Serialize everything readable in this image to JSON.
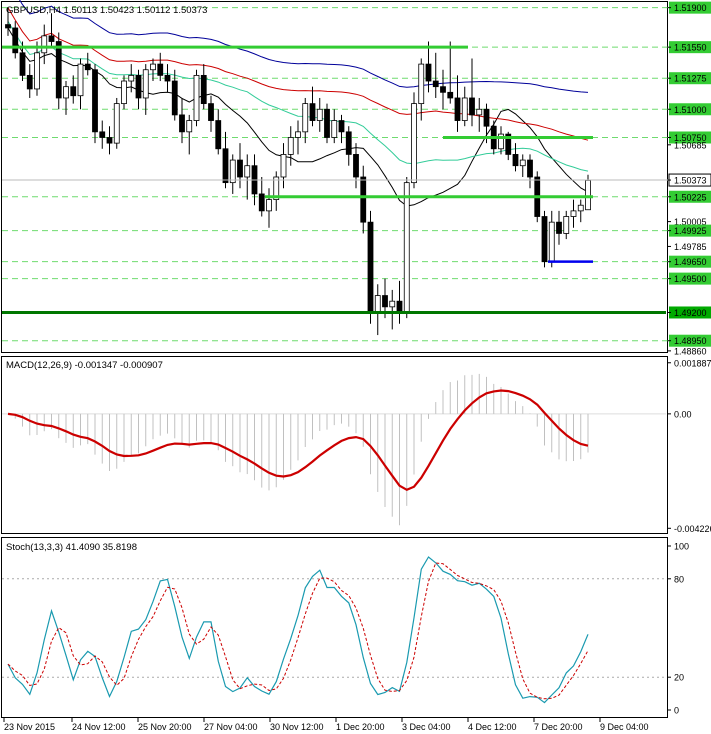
{
  "chart_data": [
    {
      "type": "candlestick",
      "title": "GBPUSD,H4 1.50113 1.50423 1.50112 1.50373",
      "ylim": [
        1.4885,
        1.5195
      ],
      "y_ticks": [
        "1.51900",
        "1.51550",
        "1.51275",
        "1.51000",
        "1.50750",
        "1.50685",
        "1.50373",
        "1.50225",
        "1.50005",
        "1.49925",
        "1.49785",
        "1.49650",
        "1.49500",
        "1.49200",
        "1.48950",
        "1.48860"
      ],
      "highlighted_labels": [
        "1.51900",
        "1.51550",
        "1.51275",
        "1.51000",
        "1.50750",
        "1.50225",
        "1.49925",
        "1.49650",
        "1.49500",
        "1.48950"
      ],
      "current_price_label": "1.50373",
      "key_level_label": "1.49200",
      "horizontal_levels": [
        {
          "value": 1.5155,
          "color": "#33cc33"
        },
        {
          "value": 1.5075,
          "color": "#33cc33"
        },
        {
          "value": 1.50225,
          "color": "#33cc33"
        },
        {
          "value": 1.4965,
          "color": "#0000ee"
        },
        {
          "value": 1.492,
          "color": "#007700"
        }
      ],
      "ohlc": [
        [
          1.5175,
          1.519,
          1.5165,
          1.5172
        ],
        [
          1.5172,
          1.5178,
          1.5145,
          1.515
        ],
        [
          1.515,
          1.516,
          1.5125,
          1.513
        ],
        [
          1.513,
          1.514,
          1.511,
          1.5118
        ],
        [
          1.5118,
          1.516,
          1.5112,
          1.515
        ],
        [
          1.515,
          1.5175,
          1.514,
          1.5165
        ],
        [
          1.5165,
          1.5185,
          1.5155,
          1.516
        ],
        [
          1.516,
          1.5168,
          1.51,
          1.511
        ],
        [
          1.511,
          1.5125,
          1.5095,
          1.512
        ],
        [
          1.512,
          1.513,
          1.5105,
          1.5112
        ],
        [
          1.5112,
          1.5145,
          1.51,
          1.514
        ],
        [
          1.514,
          1.515,
          1.513,
          1.5135
        ],
        [
          1.5135,
          1.514,
          1.507,
          1.508
        ],
        [
          1.508,
          1.509,
          1.5065,
          1.5075
        ],
        [
          1.5075,
          1.5085,
          1.506,
          1.507
        ],
        [
          1.507,
          1.511,
          1.5065,
          1.5105
        ],
        [
          1.5105,
          1.513,
          1.51,
          1.5125
        ],
        [
          1.5125,
          1.514,
          1.5115,
          1.513
        ],
        [
          1.513,
          1.5135,
          1.51,
          1.511
        ],
        [
          1.511,
          1.514,
          1.5095,
          1.5135
        ],
        [
          1.5135,
          1.5145,
          1.5125,
          1.514
        ],
        [
          1.514,
          1.515,
          1.5125,
          1.513
        ],
        [
          1.513,
          1.514,
          1.5115,
          1.5125
        ],
        [
          1.5125,
          1.5135,
          1.509,
          1.5095
        ],
        [
          1.5095,
          1.511,
          1.507,
          1.508
        ],
        [
          1.508,
          1.5095,
          1.506,
          1.509
        ],
        [
          1.509,
          1.5135,
          1.5085,
          1.513
        ],
        [
          1.513,
          1.514,
          1.51,
          1.5105
        ],
        [
          1.5105,
          1.5112,
          1.508,
          1.509
        ],
        [
          1.509,
          1.51,
          1.506,
          1.5065
        ],
        [
          1.5065,
          1.508,
          1.503,
          1.5035
        ],
        [
          1.5035,
          1.506,
          1.5025,
          1.5055
        ],
        [
          1.5055,
          1.507,
          1.503,
          1.504
        ],
        [
          1.504,
          1.506,
          1.502,
          1.505
        ],
        [
          1.505,
          1.506,
          1.5015,
          1.5025
        ],
        [
          1.5025,
          1.504,
          1.5005,
          1.501
        ],
        [
          1.501,
          1.503,
          1.4995,
          1.502
        ],
        [
          1.502,
          1.5045,
          1.501,
          1.504
        ],
        [
          1.504,
          1.507,
          1.503,
          1.506
        ],
        [
          1.506,
          1.5085,
          1.505,
          1.5075
        ],
        [
          1.5075,
          1.509,
          1.506,
          1.508
        ],
        [
          1.508,
          1.511,
          1.507,
          1.5105
        ],
        [
          1.5105,
          1.512,
          1.5085,
          1.509
        ],
        [
          1.509,
          1.511,
          1.508,
          1.51
        ],
        [
          1.51,
          1.5105,
          1.507,
          1.5075
        ],
        [
          1.5075,
          1.51,
          1.507,
          1.509
        ],
        [
          1.509,
          1.5095,
          1.507,
          1.508
        ],
        [
          1.508,
          1.5085,
          1.505,
          1.506
        ],
        [
          1.506,
          1.507,
          1.503,
          1.504
        ],
        [
          1.504,
          1.505,
          1.499,
          1.5
        ],
        [
          1.5,
          1.501,
          1.491,
          1.492
        ],
        [
          1.492,
          1.4945,
          1.49,
          1.4935
        ],
        [
          1.4935,
          1.495,
          1.4915,
          1.4925
        ],
        [
          1.4925,
          1.494,
          1.4905,
          1.493
        ],
        [
          1.493,
          1.4948,
          1.491,
          1.492
        ],
        [
          1.492,
          1.504,
          1.4915,
          1.5035
        ],
        [
          1.5035,
          1.5115,
          1.503,
          1.5105
        ],
        [
          1.5105,
          1.5145,
          1.509,
          1.514
        ],
        [
          1.514,
          1.516,
          1.5115,
          1.5125
        ],
        [
          1.5125,
          1.515,
          1.511,
          1.512
        ],
        [
          1.512,
          1.5135,
          1.51,
          1.5115
        ],
        [
          1.5115,
          1.516,
          1.5105,
          1.511
        ],
        [
          1.511,
          1.513,
          1.508,
          1.509
        ],
        [
          1.509,
          1.512,
          1.5085,
          1.511
        ],
        [
          1.511,
          1.5145,
          1.5085,
          1.5095
        ],
        [
          1.5095,
          1.511,
          1.508,
          1.51
        ],
        [
          1.51,
          1.5105,
          1.507,
          1.5085
        ],
        [
          1.5085,
          1.509,
          1.506,
          1.5065
        ],
        [
          1.5065,
          1.5085,
          1.506,
          1.5078
        ],
        [
          1.5078,
          1.508,
          1.5055,
          1.506
        ],
        [
          1.506,
          1.507,
          1.5045,
          1.505
        ],
        [
          1.505,
          1.506,
          1.504,
          1.5055
        ],
        [
          1.5055,
          1.506,
          1.503,
          1.504
        ],
        [
          1.504,
          1.5045,
          1.5,
          1.5005
        ],
        [
          1.5005,
          1.501,
          1.496,
          1.4965
        ],
        [
          1.4965,
          1.501,
          1.496,
          1.5
        ],
        [
          1.5,
          1.501,
          1.498,
          1.499
        ],
        [
          1.499,
          1.501,
          1.4985,
          1.5005
        ],
        [
          1.5005,
          1.502,
          1.4995,
          1.501
        ],
        [
          1.501,
          1.502,
          1.5,
          1.5015
        ],
        [
          1.5011,
          1.5042,
          1.5011,
          1.5037
        ]
      ]
    },
    {
      "type": "histogram+line",
      "title": "MACD(12,26,9) -0.001347 -0.000907",
      "ylim": [
        -0.0044,
        0.0021
      ],
      "y_ticks": [
        "0.001887",
        "0.00",
        "-0.004226"
      ]
    },
    {
      "type": "line",
      "title": "Stoch(13,3,3) 41.4090 35.8198",
      "ylim": [
        0,
        100
      ],
      "y_ticks": [
        "100",
        "80",
        "20",
        "0"
      ]
    }
  ],
  "x_labels": [
    "23 Nov 2015",
    "24 Nov 12:00",
    "25 Nov 20:00",
    "27 Nov 04:00",
    "30 Nov 12:00",
    "1 Dec 20:00",
    "3 Dec 04:00",
    "4 Dec 12:00",
    "7 Dec 20:00",
    "9 Dec 04:00"
  ],
  "colors": {
    "bull": "#ffffff",
    "bear": "#000000",
    "grid": "#33cc33",
    "level_blue": "#0000ee",
    "level_dark": "#007700",
    "ma_red": "#cc0000",
    "ma_navy": "#000099",
    "ma_aqua": "#33cc99",
    "ma_black": "#000000",
    "macd_hist": "#c0c0c0",
    "macd_signal": "#cc0000",
    "stoch_main": "#1a9ab0",
    "stoch_signal": "#cc0000"
  }
}
